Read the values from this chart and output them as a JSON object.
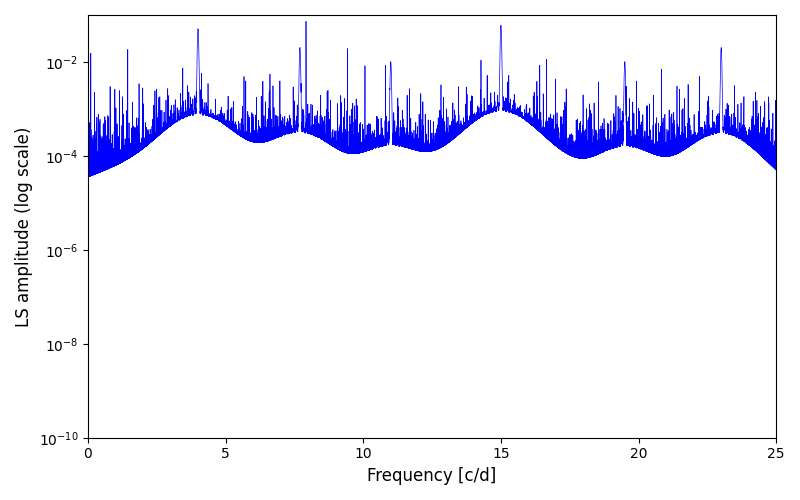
{
  "title": "",
  "xlabel": "Frequency [c/d]",
  "ylabel": "LS amplitude (log scale)",
  "xlim": [
    0,
    25
  ],
  "ylim": [
    1e-10,
    0.1
  ],
  "color": "#0000ff",
  "background_color": "#ffffff",
  "figsize": [
    8.0,
    5.0
  ],
  "dpi": 100,
  "freq_min": 0.0,
  "freq_max": 25.0,
  "n_points": 50000,
  "peak_freqs": [
    4.0,
    7.7,
    11.0,
    15.0,
    19.5,
    23.0
  ],
  "peak_amplitudes": [
    0.05,
    0.02,
    0.01,
    0.06,
    0.01,
    0.02
  ],
  "noise_floor": 1e-06,
  "base_seed": 42,
  "linewidth": 0.5
}
